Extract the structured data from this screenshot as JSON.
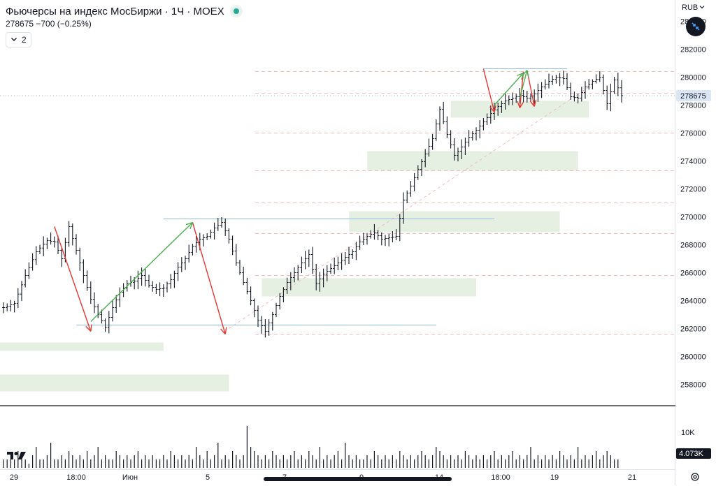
{
  "header": {
    "title": "Фьючерсы на индекс МосБиржи · 1Ч · MOEX",
    "quote": "278675 −700 (−0.25%)",
    "indicator_count": "2",
    "currency": "RUB"
  },
  "price_scale": {
    "ticks": [
      "282000",
      "280000",
      "278000",
      "276000",
      "274000",
      "272000",
      "270000",
      "268000",
      "266000",
      "264000",
      "262000",
      "260000",
      "258000"
    ],
    "top_partial": "284000",
    "current_price_label": "278675",
    "volume_tick": "10K",
    "current_volume_label": "4.073K"
  },
  "time_axis": [
    "29",
    "18:00",
    "Июн",
    "5",
    "7",
    "9",
    "14",
    "18:00",
    "19",
    "21"
  ],
  "colors": {
    "candle": "#131722",
    "zone_fill": "#e6f0e2",
    "up_arrow": "#4caf50",
    "down_arrow": "#e53935",
    "level_line": "#90b8e0",
    "dashed_level": "#f4a6a6",
    "price_label_bg": "#dbe6f5",
    "volume_label_bg": "#131722"
  },
  "icons": [
    "tradingview-logo-icon",
    "status-dot-icon",
    "chevron-down-icon",
    "compare-arrows-icon",
    "settings-gear-icon"
  ],
  "chart_data": {
    "type": "candlestick",
    "timeframe": "1H",
    "symbol": "Фьючерсы на индекс МосБиржи",
    "ylim": [
      257000,
      285000
    ],
    "path": [
      [
        0,
        263500
      ],
      [
        3,
        263800
      ],
      [
        6,
        265800
      ],
      [
        9,
        267500
      ],
      [
        12,
        268300
      ],
      [
        14,
        268200
      ],
      [
        16,
        267000
      ],
      [
        18,
        269300
      ],
      [
        20,
        267600
      ],
      [
        22,
        265800
      ],
      [
        24,
        264100
      ],
      [
        26,
        263000
      ],
      [
        28,
        262100
      ],
      [
        30,
        263500
      ],
      [
        32,
        264600
      ],
      [
        34,
        265200
      ],
      [
        36,
        265400
      ],
      [
        38,
        265800
      ],
      [
        40,
        265100
      ],
      [
        42,
        264800
      ],
      [
        44,
        264900
      ],
      [
        46,
        265500
      ],
      [
        48,
        266400
      ],
      [
        50,
        267000
      ],
      [
        52,
        267900
      ],
      [
        54,
        268400
      ],
      [
        56,
        268600
      ],
      [
        58,
        269200
      ],
      [
        60,
        269600
      ],
      [
        62,
        268400
      ],
      [
        64,
        266700
      ],
      [
        66,
        265300
      ],
      [
        68,
        264000
      ],
      [
        70,
        262600
      ],
      [
        72,
        261800
      ],
      [
        74,
        263000
      ],
      [
        76,
        264300
      ],
      [
        78,
        265300
      ],
      [
        80,
        266000
      ],
      [
        82,
        266700
      ],
      [
        84,
        267300
      ],
      [
        86,
        265200
      ],
      [
        88,
        265900
      ],
      [
        90,
        266300
      ],
      [
        92,
        266700
      ],
      [
        94,
        267100
      ],
      [
        96,
        267500
      ],
      [
        98,
        268200
      ],
      [
        100,
        268600
      ],
      [
        102,
        268900
      ],
      [
        104,
        268400
      ],
      [
        106,
        268500
      ],
      [
        108,
        268600
      ],
      [
        110,
        271200
      ],
      [
        112,
        272200
      ],
      [
        114,
        273400
      ],
      [
        116,
        274500
      ],
      [
        118,
        275600
      ],
      [
        120,
        277700
      ],
      [
        122,
        275900
      ],
      [
        124,
        274400
      ],
      [
        126,
        275000
      ],
      [
        128,
        275700
      ],
      [
        130,
        276200
      ],
      [
        132,
        276800
      ],
      [
        134,
        277400
      ],
      [
        136,
        277900
      ],
      [
        138,
        278300
      ],
      [
        140,
        278500
      ],
      [
        142,
        278700
      ],
      [
        144,
        278500
      ],
      [
        146,
        278800
      ],
      [
        148,
        279300
      ],
      [
        150,
        279700
      ],
      [
        152,
        280000
      ],
      [
        154,
        279900
      ],
      [
        156,
        278600
      ],
      [
        158,
        278500
      ],
      [
        160,
        279300
      ],
      [
        162,
        279700
      ],
      [
        164,
        280000
      ],
      [
        166,
        278100
      ],
      [
        168,
        279800
      ],
      [
        170,
        278675
      ]
    ],
    "volume": [
      2,
      2,
      3,
      2,
      4,
      3,
      2,
      1,
      3,
      5,
      2,
      2,
      3,
      6,
      2,
      2,
      3,
      2,
      4,
      3,
      2,
      3,
      2,
      4,
      2,
      3,
      5,
      2,
      3,
      2,
      2,
      4,
      3,
      2,
      3,
      2,
      3,
      4,
      2,
      3,
      2,
      3,
      2,
      2,
      3,
      2,
      4,
      3,
      2,
      3,
      2,
      3,
      2,
      5,
      3,
      2,
      4,
      2,
      3,
      6,
      2,
      3,
      2,
      4,
      3,
      2,
      3,
      10,
      5,
      4,
      3,
      2,
      3,
      2,
      4,
      3,
      2,
      3,
      2,
      3,
      4,
      2,
      3,
      2,
      4,
      3,
      2,
      5,
      2,
      3,
      2,
      3,
      4,
      2,
      6,
      3,
      2,
      3,
      2,
      2,
      3,
      2,
      4,
      3,
      2,
      3,
      2,
      3,
      2,
      4,
      3,
      2,
      3,
      2,
      3,
      4,
      3,
      2,
      3,
      5,
      4,
      3,
      2,
      3,
      2,
      3,
      2,
      4,
      3,
      2,
      3,
      2,
      3,
      2,
      3,
      4,
      2,
      3,
      2,
      3,
      4,
      2,
      3,
      2,
      3,
      5,
      2,
      3,
      2,
      3,
      2,
      3,
      2,
      4,
      3,
      2,
      3,
      2,
      5,
      2,
      3,
      2,
      3,
      4,
      2,
      3,
      4,
      3,
      2,
      2
    ],
    "drawings": {
      "zones": [
        {
          "from_bar": 0,
          "to_bar": 44,
          "low": 260400,
          "high": 261000
        },
        {
          "from_bar": 0,
          "to_bar": 62,
          "low": 257500,
          "high": 258700
        },
        {
          "from_bar": 72,
          "to_bar": 130,
          "low": 264300,
          "high": 265600
        },
        {
          "from_bar": 96,
          "to_bar": 153,
          "low": 268900,
          "high": 270400
        },
        {
          "from_bar": 101,
          "to_bar": 158,
          "low": 273300,
          "high": 274700
        },
        {
          "from_bar": 124,
          "to_bar": 161,
          "low": 277100,
          "high": 278300
        }
      ],
      "horizontal_levels": [
        {
          "price": 262250,
          "from_bar": 20,
          "to_bar": 119
        },
        {
          "price": 269850,
          "from_bar": 44,
          "to_bar": 135
        },
        {
          "price": 280600,
          "from_bar": 132,
          "to_bar": 155
        }
      ],
      "dashed_levels": [
        261600,
        265800,
        268800,
        271000,
        273300,
        276000,
        278850,
        280400
      ],
      "down_arrows": [
        {
          "from": [
            14,
            269300
          ],
          "to": [
            24,
            261800
          ]
        },
        {
          "from": [
            52,
            269600
          ],
          "to": [
            61,
            261600
          ]
        },
        {
          "from": [
            132,
            280600
          ],
          "to": [
            135,
            277500
          ]
        },
        {
          "from": [
            143,
            280400
          ],
          "to": [
            142,
            277800
          ]
        },
        {
          "from": [
            144,
            280500
          ],
          "to": [
            146,
            277900
          ]
        }
      ],
      "up_arrows": [
        {
          "from": [
            24,
            262500
          ],
          "to": [
            52,
            269600
          ]
        },
        {
          "from": [
            135,
            278000
          ],
          "to": [
            143,
            280300
          ]
        },
        {
          "from": [
            142,
            278500
          ],
          "to": [
            144,
            280500
          ]
        }
      ],
      "trendline": {
        "from": [
          62,
          262000
        ],
        "to": [
          161,
          279300
        ]
      }
    }
  }
}
